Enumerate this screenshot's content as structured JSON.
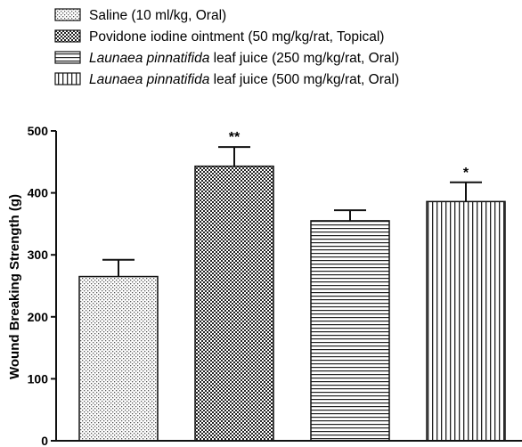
{
  "chart_data": {
    "type": "bar",
    "ylabel": "Wound Breaking Strength (g)",
    "ylim": [
      0,
      500
    ],
    "yticks": [
      0,
      100,
      200,
      300,
      400,
      500
    ],
    "grid": false,
    "legend_position": "top",
    "series": [
      {
        "name": "Saline (10 ml/kg, Oral)",
        "name_parts": [
          {
            "text": "Saline (10 ml/kg, Oral)",
            "italic": false
          }
        ],
        "pattern": "dots",
        "value": 265,
        "error": 27,
        "significance": ""
      },
      {
        "name": "Povidone iodine ointment (50 mg/kg/rat, Topical)",
        "name_parts": [
          {
            "text": "Povidone iodine ointment (50 mg/kg/rat, Topical)",
            "italic": false
          }
        ],
        "pattern": "checker",
        "value": 443,
        "error": 31,
        "significance": "**"
      },
      {
        "name": "Launaea pinnatifida leaf juice (250 mg/kg/rat, Oral)",
        "name_parts": [
          {
            "text": "Launaea pinnatifida",
            "italic": true
          },
          {
            "text": " leaf juice (250 mg/kg/rat, Oral)",
            "italic": false
          }
        ],
        "pattern": "horizontal-lines",
        "value": 355,
        "error": 17,
        "significance": ""
      },
      {
        "name": "Launaea pinnatifida leaf juice (500 mg/kg/rat, Oral)",
        "name_parts": [
          {
            "text": "Launaea pinnatifida",
            "italic": true
          },
          {
            "text": " leaf juice (500 mg/kg/rat, Oral)",
            "italic": false
          }
        ],
        "pattern": "vertical-lines",
        "value": 386,
        "error": 31,
        "significance": "*"
      }
    ]
  }
}
